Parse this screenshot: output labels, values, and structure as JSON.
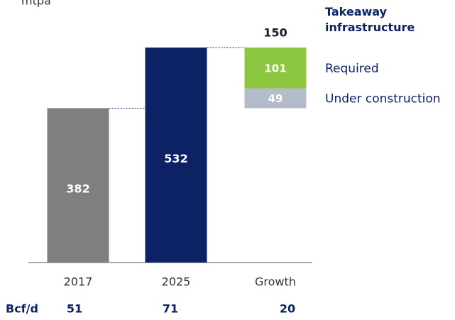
{
  "chart_data": {
    "type": "bar",
    "y_label": "mtpa",
    "categories": [
      "2017",
      "2025",
      "Growth"
    ],
    "values": [
      382,
      532,
      null
    ],
    "colors": [
      "#7f7f7f",
      "#0c2265"
    ],
    "series": [
      {
        "name": "Under construction",
        "color": "#b4bccb",
        "values": [
          null,
          null,
          49
        ]
      },
      {
        "name": "Required",
        "color": "#8dc641",
        "values": [
          null,
          null,
          101
        ]
      }
    ],
    "growth_total": 150,
    "legend_title": "Takeaway infrastructure",
    "ylim": [
      0,
      600
    ],
    "row_label": "Bcf/d",
    "row_values": [
      51,
      71,
      20
    ]
  }
}
